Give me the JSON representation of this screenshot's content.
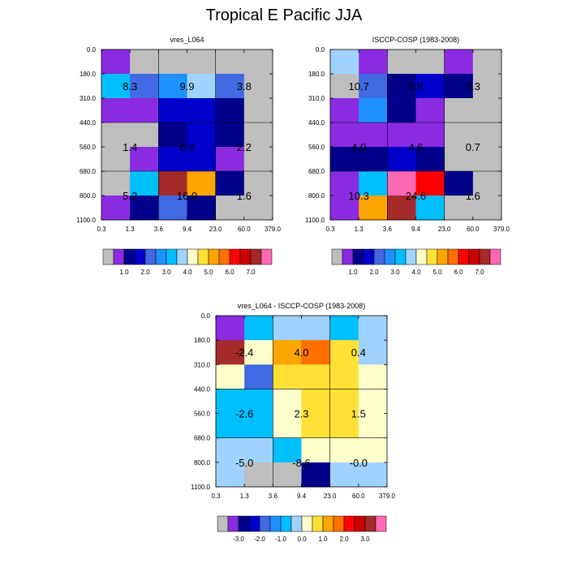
{
  "figure_title": "Tropical E Pacific JJA",
  "palettes": {
    "main": [
      "#bebebe",
      "#8a2be2",
      "#00008b",
      "#0000cd",
      "#4169e1",
      "#1e90ff",
      "#00bfff",
      "#a0d2ff",
      "#ffffcc",
      "#ffe135",
      "#ffa500",
      "#ff7000",
      "#ff0000",
      "#cd0000",
      "#a52a2a",
      "#ff69b4"
    ],
    "diff": [
      "#bebebe",
      "#8a2be2",
      "#00008b",
      "#0000cd",
      "#4169e1",
      "#1e90ff",
      "#00bfff",
      "#a0d2ff",
      "#ffffcc",
      "#ffe135",
      "#ffa500",
      "#ff7000",
      "#ff0000",
      "#cd0000",
      "#a52a2a",
      "#ff69b4"
    ]
  },
  "colorbars": {
    "main": {
      "labels": [
        "1.0",
        "2.0",
        "3.0",
        "4.0",
        "5.0",
        "6.0",
        "7.0"
      ]
    },
    "diff": {
      "labels": [
        "-3.0",
        "-2.0",
        "-1.0",
        "0.0",
        "1.0",
        "2.0",
        "3.0"
      ]
    }
  },
  "chart_data": [
    {
      "type": "heatmap",
      "title": "vres_L064",
      "palette": "main",
      "xlabel": "",
      "ylabel": "",
      "x_ticks": [
        "0.3",
        "1.3",
        "3.6",
        "9.4",
        "23.0",
        "60.0",
        "379.0"
      ],
      "y_ticks": [
        "0.0",
        "180.0",
        "310.0",
        "440.0",
        "560.0",
        "680.0",
        "800.0",
        "1100.0"
      ],
      "cell_color_index": [
        [
          1,
          0,
          0,
          0,
          0,
          0
        ],
        [
          6,
          4,
          5,
          7,
          4,
          0
        ],
        [
          1,
          1,
          3,
          3,
          2,
          0
        ],
        [
          0,
          0,
          2,
          3,
          2,
          0
        ],
        [
          0,
          1,
          3,
          3,
          1,
          0
        ],
        [
          0,
          6,
          14,
          10,
          2,
          0
        ],
        [
          1,
          2,
          4,
          2,
          0,
          0
        ]
      ],
      "summary_values": [
        [
          "8.3",
          "9.9",
          "3.8"
        ],
        [
          "1.4",
          "6.9",
          "2.2"
        ],
        [
          "5.2",
          "16.0",
          "1.6"
        ]
      ]
    },
    {
      "type": "heatmap",
      "title": "ISCCP-COSP (1983-2008)",
      "palette": "main",
      "xlabel": "",
      "ylabel": "",
      "x_ticks": [
        "0.3",
        "1.3",
        "3.6",
        "9.4",
        "23.0",
        "60.0",
        "379.0"
      ],
      "y_ticks": [
        "0.0",
        "180.0",
        "310.0",
        "440.0",
        "560.0",
        "680.0",
        "800.0",
        "1100.0"
      ],
      "cell_color_index": [
        [
          7,
          1,
          0,
          0,
          1,
          0
        ],
        [
          0,
          4,
          2,
          3,
          2,
          0
        ],
        [
          1,
          5,
          2,
          1,
          0,
          0
        ],
        [
          1,
          1,
          1,
          1,
          0,
          0
        ],
        [
          2,
          2,
          3,
          2,
          0,
          0
        ],
        [
          1,
          6,
          15,
          12,
          2,
          0
        ],
        [
          1,
          10,
          14,
          6,
          0,
          0
        ]
      ],
      "summary_values": [
        [
          "10.7",
          "5.8",
          "3.3"
        ],
        [
          "4.0",
          "4.6",
          "0.7"
        ],
        [
          "10.3",
          "24.6",
          "1.6"
        ]
      ]
    },
    {
      "type": "heatmap",
      "title": "vres_L064 - ISCCP-COSP (1983-2008)",
      "palette": "diff",
      "xlabel": "",
      "ylabel": "",
      "x_ticks": [
        "0.3",
        "1.3",
        "3.6",
        "9.4",
        "23.0",
        "60.0",
        "379.0"
      ],
      "y_ticks": [
        "0.0",
        "180.0",
        "310.0",
        "440.0",
        "560.0",
        "680.0",
        "800.0",
        "1100.0"
      ],
      "cell_color_index": [
        [
          1,
          6,
          7,
          7,
          6,
          7
        ],
        [
          14,
          8,
          10,
          11,
          9,
          7
        ],
        [
          8,
          4,
          9,
          9,
          9,
          8
        ],
        [
          6,
          6,
          8,
          9,
          9,
          8
        ],
        [
          6,
          6,
          8,
          9,
          9,
          8
        ],
        [
          7,
          7,
          6,
          8,
          8,
          8
        ],
        [
          7,
          0,
          0,
          2,
          7,
          7
        ]
      ],
      "summary_values": [
        [
          "-2.4",
          "4.0",
          "0.4"
        ],
        [
          "-2.6",
          "2.3",
          "1.5"
        ],
        [
          "-5.0",
          "-8.6",
          "-0.0"
        ]
      ]
    }
  ]
}
